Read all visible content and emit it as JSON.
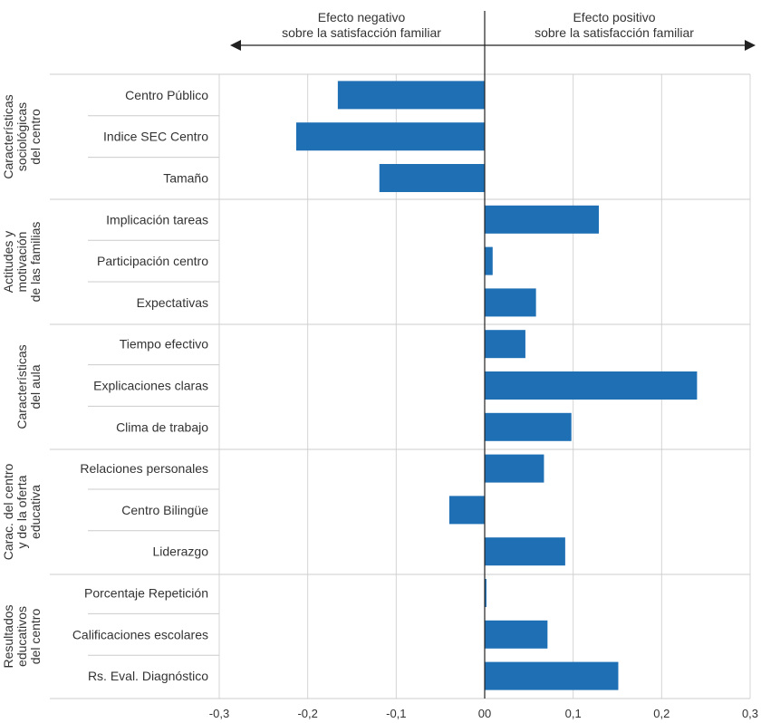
{
  "chart_data": {
    "type": "bar",
    "orientation": "horizontal",
    "xlim": [
      -0.3,
      0.3
    ],
    "x_ticks": [
      "-0,3",
      "-0,2",
      "-0,1",
      "00",
      "0,1",
      "0,2",
      "0,3"
    ],
    "grid": true,
    "bar_color": "#1f6fb5",
    "negative_effect_label": [
      "Efecto negativo",
      "sobre la satisfacción familiar"
    ],
    "positive_effect_label": [
      "Efecto positivo",
      "sobre la satisfacción familiar"
    ],
    "groups": [
      {
        "name": [
          "Características",
          "sociológicas",
          "del centro"
        ],
        "categories": [
          "Centro Público",
          "Indice SEC Centro",
          "Tamaño"
        ],
        "values": [
          -0.166,
          -0.213,
          -0.119
        ]
      },
      {
        "name": [
          "Actitudes y",
          "motivación",
          "de las familias"
        ],
        "categories": [
          "Implicación tareas",
          "Participación centro",
          "Expectativas"
        ],
        "values": [
          0.129,
          0.009,
          0.058
        ]
      },
      {
        "name": [
          "Características",
          "del aula"
        ],
        "categories": [
          "Tiempo efectivo",
          "Explicaciones claras",
          "Clima de trabajo"
        ],
        "values": [
          0.046,
          0.24,
          0.098
        ]
      },
      {
        "name": [
          "Carac. del centro",
          "y de la oferta",
          "educativa"
        ],
        "categories": [
          "Relaciones personales",
          "Centro Bilingüe",
          "Liderazgo"
        ],
        "values": [
          0.067,
          -0.04,
          0.091
        ]
      },
      {
        "name": [
          "Resultados",
          "educativos",
          "del centro"
        ],
        "categories": [
          "Porcentaje Repetición",
          "Calificaciones escolares",
          "Rs. Eval. Diagnóstico"
        ],
        "values": [
          0.002,
          0.071,
          0.151
        ]
      }
    ]
  }
}
